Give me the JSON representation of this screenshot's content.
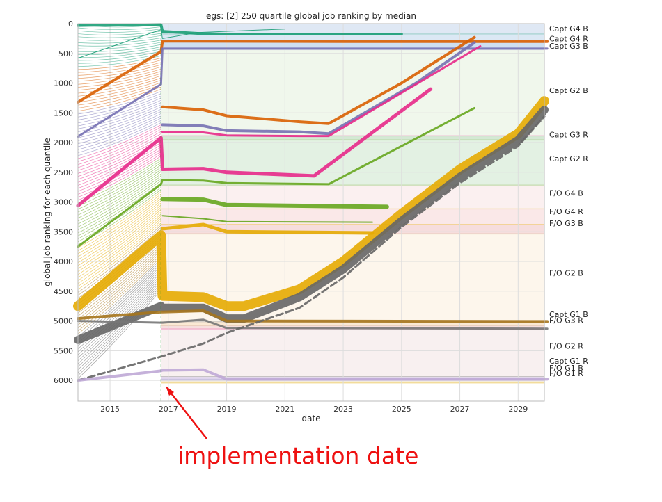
{
  "chart_data": {
    "type": "line",
    "title": "egs: [2]    250 quartile global job ranking by median",
    "xlabel": "date",
    "ylabel": "global job ranking for each quantile",
    "xlim": [
      2013.9,
      2029.9
    ],
    "ylim": [
      6350,
      0
    ],
    "y_inverted": true,
    "grid": true,
    "x_ticks": [
      2015,
      2017,
      2019,
      2021,
      2023,
      2025,
      2027,
      2029
    ],
    "y_ticks": [
      0,
      500,
      1000,
      1500,
      2000,
      2500,
      3000,
      3500,
      4000,
      4500,
      5000,
      5500,
      6000
    ],
    "implementation_date": 2016.75,
    "bands": [
      {
        "label": "Capt G4 B",
        "top": 0,
        "bottom": 180,
        "color": "#dbe6f3",
        "line_color": "#1b9e77"
      },
      {
        "label": "Capt G4 R",
        "top": 180,
        "bottom": 310,
        "color": "#d7e5f3",
        "line_color": "#d95f02"
      },
      {
        "label": "Capt G3 B",
        "top": 310,
        "bottom": 440,
        "color": "#c9dcef",
        "line_color": "#7570b3"
      },
      {
        "label": "Capt G2 B",
        "top": 440,
        "bottom": 1890,
        "color": "#eef6ea",
        "line_color": "#e7298a"
      },
      {
        "label": "Capt G3 R",
        "top": 1890,
        "bottom": 1960,
        "color": "#cfe7cf",
        "line_color": "#66a61e"
      },
      {
        "label": "Capt G2 R",
        "top": 1960,
        "bottom": 2720,
        "color": "#e0efe0",
        "line_color": "#66a61e"
      },
      {
        "label": "F/O G4 B",
        "top": 2720,
        "bottom": 3120,
        "color": "#fbeeee",
        "line_color": "#e6ab02"
      },
      {
        "label": "F/O G4 R",
        "top": 3120,
        "bottom": 3380,
        "color": "#f9e6e6",
        "line_color": "#e6ab02"
      },
      {
        "label": "F/O G3 B",
        "top": 3380,
        "bottom": 3540,
        "color": "#f5d9d9",
        "line_color": "#a6761d"
      },
      {
        "label": "F/O G2 B",
        "top": 3540,
        "bottom": 5020,
        "color": "#fdf5ea",
        "line_color": "#666666"
      },
      {
        "label": "Capt G1 B",
        "top": 5020,
        "bottom": 5080,
        "color": "#fbe7cf",
        "line_color": "#a6761d"
      },
      {
        "label": "F/O G3 R",
        "top": 5080,
        "bottom": 5140,
        "color": "#f6dcdc",
        "line_color": "#e7298a"
      },
      {
        "label": "F/O G2 R",
        "top": 5140,
        "bottom": 5940,
        "color": "#f7eeee",
        "line_color": "#666666"
      },
      {
        "label": "Capt G1 R",
        "top": 5940,
        "bottom": 5985,
        "color": "#e6d9ef",
        "line_color": "#7570b3"
      },
      {
        "label": "F/O G1 B",
        "top": 5985,
        "bottom": 6010,
        "color": "#ece4f2",
        "line_color": "#bfa9d6"
      },
      {
        "label": "F/O G1 R",
        "top": 6010,
        "bottom": 6040,
        "color": "#f4ecd6",
        "line_color": "#e6ab02"
      }
    ],
    "band_label_values": [
      {
        "label": "Capt G4 B",
        "y": 80
      },
      {
        "label": "Capt G4 R",
        "y": 250
      },
      {
        "label": "Capt G3 B",
        "y": 375
      },
      {
        "label": "Capt G2 B",
        "y": 1120
      },
      {
        "label": "Capt G3 R",
        "y": 1865
      },
      {
        "label": "Capt G2 R",
        "y": 2270
      },
      {
        "label": "F/O G4 B",
        "y": 2850
      },
      {
        "label": "F/O G4 R",
        "y": 3160
      },
      {
        "label": "F/O G3 B",
        "y": 3355
      },
      {
        "label": "F/O G2 B",
        "y": 4190
      },
      {
        "label": "Capt G1 B",
        "y": 4890
      },
      {
        "label": "F/O G3 R",
        "y": 4990
      },
      {
        "label": "F/O G2 R",
        "y": 5420
      },
      {
        "label": "Capt G1 R",
        "y": 5670
      },
      {
        "label": "F/O G1 B",
        "y": 5790
      },
      {
        "label": "F/O G1 R",
        "y": 5880
      }
    ],
    "series": [
      {
        "color": "#1b9e77",
        "x": [
          2013.9,
          2016.75,
          2016.8,
          2018.2,
          2019.0,
          2020.0,
          2022.0,
          2025.0
        ],
        "y": [
          30,
          15,
          130,
          170,
          175,
          175,
          175,
          175
        ],
        "width": 4
      },
      {
        "color": "#1b9e77",
        "x": [
          2013.9,
          2016.75,
          2016.8,
          2018.0,
          2021.0
        ],
        "y": [
          580,
          100,
          250,
          150,
          90
        ],
        "width": 1
      },
      {
        "color": "#d95f02",
        "x": [
          2013.9,
          2016.75,
          2016.8,
          2023.0,
          2030.0
        ],
        "y": [
          1320,
          470,
          295,
          300,
          300
        ],
        "width": 4
      },
      {
        "color": "#7570b3",
        "x": [
          2013.9,
          2016.75,
          2016.8,
          2018.2,
          2030.0
        ],
        "y": [
          1900,
          1020,
          420,
          420,
          420
        ],
        "width": 3
      },
      {
        "color": "#d95f02",
        "x": [
          2016.8,
          2018.2,
          2019.0,
          2021.5,
          2022.5,
          2025.0,
          2027.5
        ],
        "y": [
          1400,
          1450,
          1550,
          1650,
          1680,
          1000,
          230
        ],
        "width": 4
      },
      {
        "color": "#7570b3",
        "x": [
          2016.8,
          2018.2,
          2019.0,
          2021.5,
          2022.5,
          2025.5,
          2027.5
        ],
        "y": [
          1700,
          1720,
          1800,
          1820,
          1850,
          1000,
          320
        ],
        "width": 4
      },
      {
        "color": "#e7298a",
        "x": [
          2016.8,
          2018.2,
          2019.0,
          2021.5,
          2022.5,
          2027.7
        ],
        "y": [
          1820,
          1830,
          1880,
          1890,
          1890,
          380
        ],
        "width": 3
      },
      {
        "color": "#e7298a",
        "x": [
          2013.9,
          2016.75,
          2016.8,
          2018.2,
          2019.0,
          2022.0,
          2026.0
        ],
        "y": [
          3060,
          1920,
          2450,
          2440,
          2500,
          2560,
          1100
        ],
        "width": 5
      },
      {
        "color": "#66a61e",
        "x": [
          2013.9,
          2016.75,
          2016.8,
          2018.2,
          2019.0,
          2022.5,
          2027.5
        ],
        "y": [
          3750,
          2700,
          2630,
          2640,
          2680,
          2700,
          1420
        ],
        "width": 3
      },
      {
        "color": "#66a61e",
        "x": [
          2016.8,
          2018.2,
          2019.0,
          2024.5
        ],
        "y": [
          2950,
          2960,
          3050,
          3080
        ],
        "width": 6
      },
      {
        "color": "#66a61e",
        "x": [
          2016.8,
          2018.2,
          2019.0,
          2024.0
        ],
        "y": [
          3230,
          3280,
          3330,
          3340
        ],
        "width": 2
      },
      {
        "color": "#e6ab02",
        "x": [
          2016.8,
          2018.2,
          2019.0,
          2024.0
        ],
        "y": [
          3450,
          3380,
          3500,
          3520
        ],
        "width": 5
      },
      {
        "color": "#e6ab02",
        "x": [
          2013.9,
          2016.75,
          2016.8,
          2018.2,
          2019.0,
          2019.6,
          2021.5,
          2023.0,
          2025.0,
          2027.0,
          2029.0,
          2029.9
        ],
        "y": [
          4750,
          3560,
          4580,
          4600,
          4750,
          4750,
          4470,
          4000,
          3200,
          2450,
          1850,
          1300
        ],
        "width": 14
      },
      {
        "color": "#666666",
        "x": [
          2013.9,
          2016.75,
          2016.8,
          2018.2,
          2019.0,
          2019.6,
          2021.5,
          2023.0,
          2025.0,
          2027.0,
          2029.0,
          2029.9
        ],
        "y": [
          5320,
          4750,
          4780,
          4780,
          4960,
          4960,
          4600,
          4130,
          3320,
          2580,
          1960,
          1450
        ],
        "width": 12
      },
      {
        "color": "#a6761d",
        "x": [
          2013.9,
          2016.75,
          2016.8,
          2018.2,
          2019.0,
          2030.0
        ],
        "y": [
          4960,
          4850,
          4850,
          4830,
          5000,
          5010
        ],
        "width": 4
      },
      {
        "color": "#777777",
        "x": [
          2013.9,
          2016.75,
          2016.8,
          2018.2,
          2019.0,
          2030.0
        ],
        "y": [
          5000,
          5030,
          5030,
          4980,
          5120,
          5130
        ],
        "width": 3
      },
      {
        "color": "#666666",
        "x": [
          2013.9,
          2016.75,
          2018.2,
          2019.0,
          2021.5,
          2023.0,
          2025.0,
          2027.0,
          2029.0,
          2029.9
        ],
        "y": [
          6000,
          5600,
          5380,
          5200,
          4780,
          4270,
          3420,
          2680,
          2060,
          1560
        ],
        "width": 3,
        "dashed": true
      },
      {
        "color": "#bfa9d6",
        "x": [
          2013.9,
          2016.75,
          2016.8,
          2018.2,
          2019.0,
          2030.0
        ],
        "y": [
          6000,
          5840,
          5830,
          5820,
          5980,
          5980
        ],
        "width": 4
      }
    ]
  },
  "annotation": {
    "text": "implementation date"
  }
}
